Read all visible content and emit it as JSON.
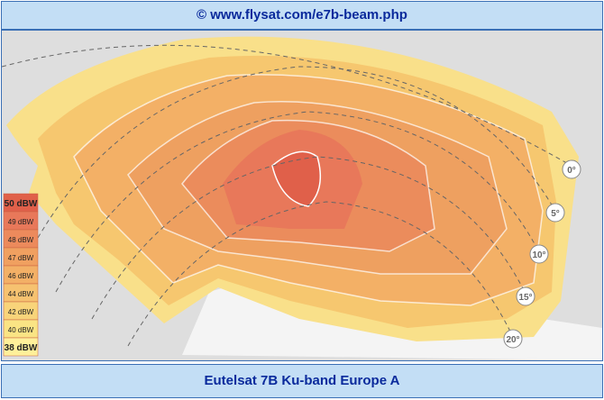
{
  "header": {
    "title": "© www.flysat.com/e7b-beam.php"
  },
  "legend": {
    "items": [
      "50 dBW",
      "49 dBW",
      "48 dBW",
      "47 dBW",
      "46 dBW",
      "44 dBW",
      "42 dBW",
      "40 dBW",
      "38 dBW"
    ]
  },
  "elevation_labels": [
    "0°",
    "5°",
    "10°",
    "15°",
    "20°"
  ],
  "footer": {
    "title": "Eutelsat 7B Ku-band Europe A"
  }
}
